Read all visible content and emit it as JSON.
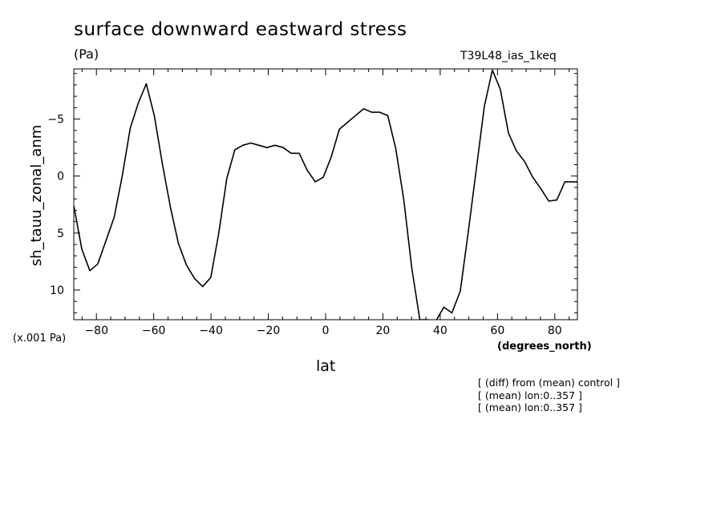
{
  "chart_data": {
    "type": "line",
    "title": "surface downward eastward stress",
    "units": "(Pa)",
    "run_label": "T39L48_ias_1keq",
    "ylabel": "sh_tauu_zonal_anm",
    "xlabel": "lat",
    "x_unit": "(degrees_north)",
    "scale_note": "(x.001 Pa)",
    "y_inverted": true,
    "xlim": [
      -87.9,
      87.9
    ],
    "ylim": [
      12.6,
      -9.4
    ],
    "x_ticks": [
      -80,
      -60,
      -40,
      -20,
      0,
      20,
      40,
      60,
      80
    ],
    "y_ticks": [
      -5,
      0,
      5,
      10
    ],
    "grid": false,
    "series": [
      {
        "x": [
          -87.9,
          -85.1,
          -82.3,
          -79.5,
          -76.7,
          -73.8,
          -71.0,
          -68.2,
          -65.4,
          -62.6,
          -59.8,
          -57.0,
          -54.2,
          -51.4,
          -48.6,
          -45.7,
          -42.9,
          -40.1,
          -37.3,
          -34.5,
          -31.7,
          -28.9,
          -26.1,
          -23.3,
          -20.5,
          -17.7,
          -14.8,
          -12.0,
          -9.2,
          -6.4,
          -3.6,
          -0.8,
          2.0,
          4.8,
          7.6,
          10.4,
          13.3,
          16.1,
          18.9,
          21.7,
          24.5,
          27.3,
          30.1,
          32.9,
          35.7,
          38.5,
          41.3,
          44.1,
          47.0,
          49.8,
          52.6,
          55.4,
          58.2,
          61.0,
          63.8,
          66.6,
          69.4,
          72.3,
          75.1,
          77.9,
          80.7,
          83.5,
          86.3,
          87.9
        ],
        "y": [
          2.6,
          6.4,
          8.3,
          7.7,
          5.7,
          3.6,
          0.0,
          -4.2,
          -6.4,
          -8.1,
          -5.3,
          -1.1,
          2.7,
          5.9,
          7.8,
          9.0,
          9.7,
          8.9,
          5.0,
          0.2,
          -2.3,
          -2.7,
          -2.9,
          -2.7,
          -2.5,
          -2.7,
          -2.5,
          -2.0,
          -2.0,
          -0.5,
          0.5,
          0.1,
          -1.7,
          -4.1,
          -4.7,
          -5.3,
          -5.9,
          -5.6,
          -5.6,
          -5.3,
          -2.4,
          2.1,
          8.1,
          12.6,
          12.6,
          12.7,
          11.5,
          12.0,
          10.1,
          4.9,
          -0.6,
          -6.1,
          -9.3,
          -7.6,
          -3.8,
          -2.2,
          -1.3,
          0.1,
          1.1,
          2.2,
          2.1,
          0.5,
          0.5,
          0.5
        ]
      }
    ]
  },
  "notes": [
    "[ (diff) from (mean) control ]",
    "[ (mean) lon:0..357 ]",
    "[ (mean) lon:0..357 ]"
  ]
}
